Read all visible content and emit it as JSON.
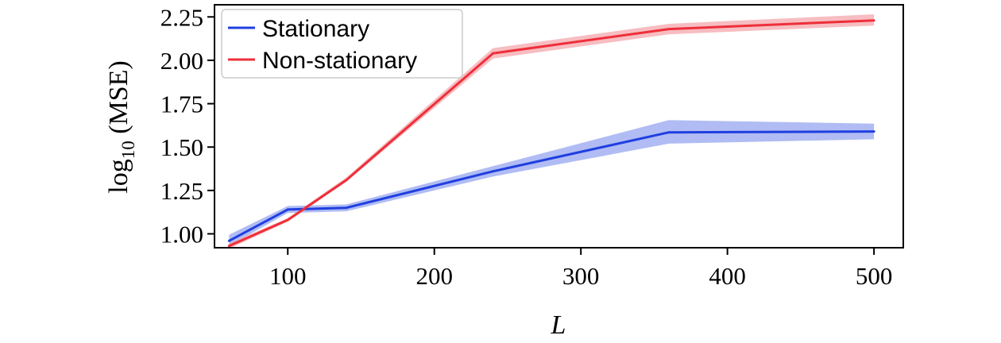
{
  "chart_data": {
    "type": "line",
    "xlabel": "L",
    "ylabel_main": "log",
    "ylabel_sub": "10",
    "ylabel_tail": " (MSE)",
    "xlim": [
      50,
      520
    ],
    "ylim": [
      0.92,
      2.32
    ],
    "xticks": [
      100,
      200,
      300,
      400,
      500
    ],
    "yticks": [
      1.0,
      1.25,
      1.5,
      1.75,
      2.0,
      2.25
    ],
    "grid": false,
    "legend_position": "top-left",
    "series": [
      {
        "name": "Stationary",
        "color": "#1f3fe0",
        "band_color": "#8fa0ee",
        "x": [
          60,
          100,
          140,
          240,
          360,
          500
        ],
        "y": [
          0.96,
          1.14,
          1.15,
          1.36,
          1.585,
          1.59
        ],
        "y_lower": [
          0.93,
          1.12,
          1.13,
          1.33,
          1.52,
          1.545
        ],
        "y_upper": [
          0.995,
          1.16,
          1.17,
          1.39,
          1.655,
          1.635
        ]
      },
      {
        "name": "Non-stationary",
        "color": "#ee2f3a",
        "band_color": "#f4a1a6",
        "x": [
          60,
          100,
          140,
          240,
          360,
          500
        ],
        "y": [
          0.93,
          1.08,
          1.31,
          2.04,
          2.18,
          2.23
        ],
        "y_lower": [
          0.915,
          1.07,
          1.3,
          2.01,
          2.15,
          2.2
        ],
        "y_upper": [
          0.945,
          1.09,
          1.325,
          2.07,
          2.21,
          2.265
        ]
      }
    ]
  }
}
